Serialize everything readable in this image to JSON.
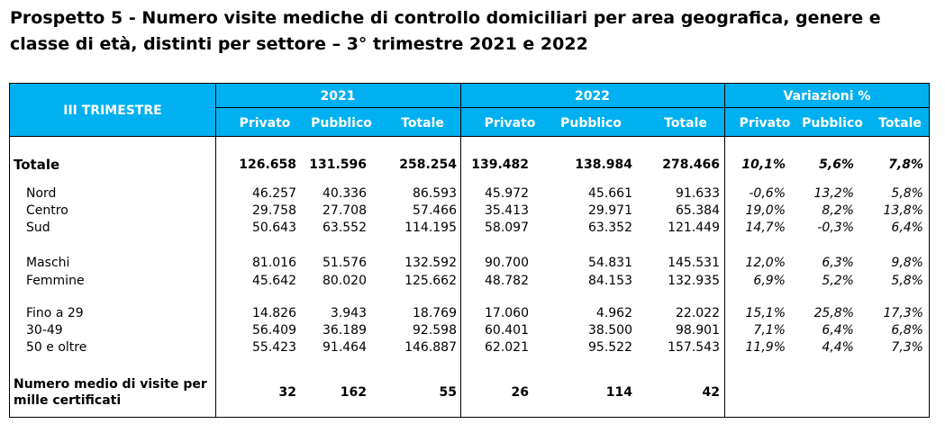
{
  "title": "Prospetto 5 - Numero visite mediche di controllo domiciliari per area geografica, genere e classe di età, distinti per settore – 3° trimestre 2021 e 2022",
  "header": {
    "row_label": "III TRIMESTRE",
    "groups": [
      "2021",
      "2022",
      "Variazioni %"
    ],
    "subcols": [
      "Privato",
      "Pubblico",
      "Totale",
      "Privato",
      "Pubblico",
      "Totale",
      "Privato",
      "Pubblico",
      "Totale"
    ]
  },
  "rows": [
    {
      "label": "Totale",
      "values": [
        "126.658",
        "131.596",
        "258.254",
        "139.482",
        "138.984",
        "278.466",
        "10,1%",
        "5,6%",
        "7,8%"
      ]
    },
    {
      "label": "Nord",
      "values": [
        "46.257",
        "40.336",
        "86.593",
        "45.972",
        "45.661",
        "91.633",
        "-0,6%",
        "13,2%",
        "5,8%"
      ]
    },
    {
      "label": "Centro",
      "values": [
        "29.758",
        "27.708",
        "57.466",
        "35.413",
        "29.971",
        "65.384",
        "19,0%",
        "8,2%",
        "13,8%"
      ]
    },
    {
      "label": "Sud",
      "values": [
        "50.643",
        "63.552",
        "114.195",
        "58.097",
        "63.352",
        "121.449",
        "14,7%",
        "-0,3%",
        "6,4%"
      ]
    },
    {
      "label": "Maschi",
      "values": [
        "81.016",
        "51.576",
        "132.592",
        "90.700",
        "54.831",
        "145.531",
        "12,0%",
        "6,3%",
        "9,8%"
      ]
    },
    {
      "label": "Femmine",
      "values": [
        "45.642",
        "80.020",
        "125.662",
        "48.782",
        "84.153",
        "132.935",
        "6,9%",
        "5,2%",
        "5,8%"
      ]
    },
    {
      "label": "Fino a 29",
      "values": [
        "14.826",
        "3.943",
        "18.769",
        "17.060",
        "4.962",
        "22.022",
        "15,1%",
        "25,8%",
        "17,3%"
      ]
    },
    {
      "label": "30-49",
      "values": [
        "56.409",
        "36.189",
        "92.598",
        "60.401",
        "38.500",
        "98.901",
        "7,1%",
        "6,4%",
        "6,8%"
      ]
    },
    {
      "label": "50 e oltre",
      "values": [
        "55.423",
        "91.464",
        "146.887",
        "62.021",
        "95.522",
        "157.543",
        "11,9%",
        "4,4%",
        "7,3%"
      ]
    }
  ],
  "average": {
    "label_line1": "Numero medio di visite per",
    "label_line2": "mille certificati",
    "values": [
      "32",
      "162",
      "55",
      "26",
      "114",
      "42"
    ]
  }
}
